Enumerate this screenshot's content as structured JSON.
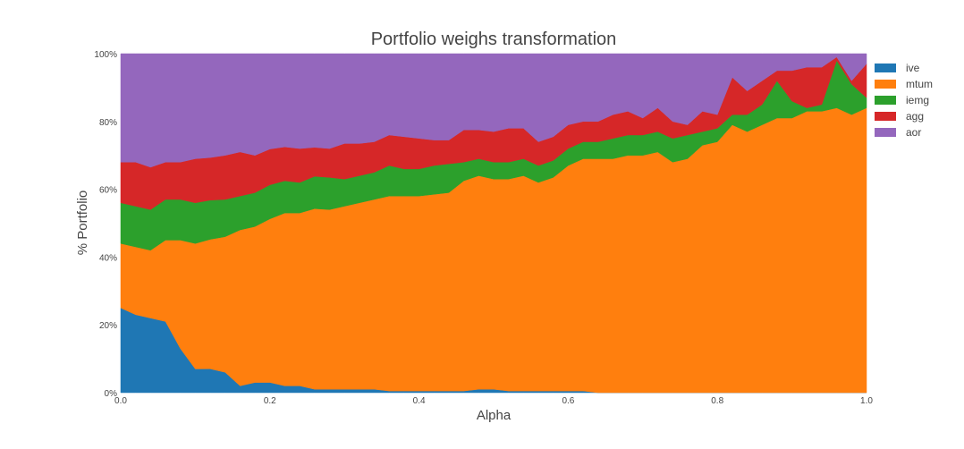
{
  "chart_data": {
    "type": "area",
    "stacked": true,
    "normalized": true,
    "title": "Portfolio weighs transformation",
    "xlabel": "Alpha",
    "ylabel": "% Portfolio",
    "xlim": [
      0,
      1
    ],
    "ylim": [
      0,
      100
    ],
    "x_ticks": [
      0,
      0.2,
      0.4,
      0.6,
      0.8,
      1
    ],
    "x_tick_labels": [
      "0.0",
      "0.2",
      "0.4",
      "0.6",
      "0.8",
      "1.0"
    ],
    "y_ticks": [
      0,
      20,
      40,
      60,
      80,
      100
    ],
    "y_tick_labels": [
      "0%",
      "20%",
      "40%",
      "60%",
      "80%",
      "100%"
    ],
    "grid": false,
    "legend_position": "top-right",
    "x": [
      0,
      0.02,
      0.04,
      0.06,
      0.08,
      0.1,
      0.12,
      0.14,
      0.16,
      0.18,
      0.2,
      0.22,
      0.24,
      0.26,
      0.28,
      0.3,
      0.32,
      0.34,
      0.36,
      0.38,
      0.4,
      0.42,
      0.44,
      0.46,
      0.48,
      0.5,
      0.52,
      0.54,
      0.56,
      0.58,
      0.6,
      0.62,
      0.64,
      0.66,
      0.68,
      0.7,
      0.72,
      0.74,
      0.76,
      0.78,
      0.8,
      0.82,
      0.84,
      0.86,
      0.88,
      0.9,
      0.92,
      0.94,
      0.96,
      0.98,
      1.0
    ],
    "series": [
      {
        "name": "ive",
        "color": "#1f77b4",
        "values": [
          25,
          23,
          22,
          21,
          13,
          7,
          7,
          6,
          2,
          3,
          3,
          2,
          2,
          1,
          1,
          1,
          1,
          1,
          0.5,
          0.5,
          0.5,
          0.5,
          0.5,
          0.5,
          1,
          1,
          0.5,
          0.5,
          0.5,
          0.5,
          0.5,
          0.5,
          0,
          0,
          0,
          0,
          0,
          0,
          0,
          0,
          0,
          0,
          0,
          0,
          0,
          0,
          0,
          0,
          0,
          0,
          0
        ]
      },
      {
        "name": "mtum",
        "color": "#ff7f0e",
        "values": [
          19,
          20,
          20,
          24,
          32,
          37,
          38,
          40,
          46,
          46,
          48,
          51,
          51,
          53,
          53,
          54,
          55,
          56,
          57.5,
          57.5,
          57.5,
          58,
          58.5,
          62,
          63,
          62,
          62.5,
          63.5,
          61.5,
          63,
          66.5,
          68.5,
          69,
          69,
          70,
          70,
          71,
          68,
          69,
          73,
          74,
          79,
          77,
          79,
          81,
          81,
          83,
          83,
          84,
          82,
          84
        ]
      },
      {
        "name": "iemg",
        "color": "#2ca02c",
        "values": [
          12,
          12,
          12,
          12,
          12,
          12,
          11.5,
          11,
          10,
          10,
          10,
          9.5,
          9,
          9.5,
          9.5,
          8,
          8,
          8,
          9,
          8,
          8,
          8.5,
          8.5,
          5.5,
          5,
          5,
          5,
          5,
          5,
          5,
          5,
          5,
          5,
          6,
          6,
          6,
          6,
          7,
          7,
          4,
          4,
          3,
          5,
          6,
          11,
          5,
          1,
          2,
          14,
          9,
          3
        ]
      },
      {
        "name": "agg",
        "color": "#d62728",
        "values": [
          12,
          13,
          12.5,
          11,
          11,
          13,
          12.5,
          13,
          13,
          11,
          10.5,
          10,
          10,
          8.5,
          8.5,
          10.5,
          9.5,
          9,
          9,
          9.5,
          9,
          7.5,
          7,
          9.5,
          8.5,
          9,
          10,
          9,
          7,
          7,
          7,
          6,
          6,
          7,
          7,
          5,
          7,
          5,
          3,
          6,
          4,
          11,
          7,
          7,
          3,
          9,
          12,
          11,
          1,
          1,
          10
        ]
      },
      {
        "name": "aor",
        "color": "#9467bd",
        "values": [
          32,
          32,
          33.5,
          32,
          32,
          31,
          30.5,
          30,
          29,
          30,
          28,
          27.5,
          28,
          27.5,
          28,
          26.5,
          26.5,
          26,
          24,
          24.5,
          25,
          25.5,
          25.5,
          22.5,
          22.5,
          23,
          22,
          22,
          26,
          24.5,
          21,
          20,
          20,
          18,
          17,
          19,
          16,
          20,
          21,
          17,
          18,
          7,
          11,
          8,
          5,
          5,
          4,
          4,
          1,
          8,
          3
        ]
      }
    ]
  }
}
